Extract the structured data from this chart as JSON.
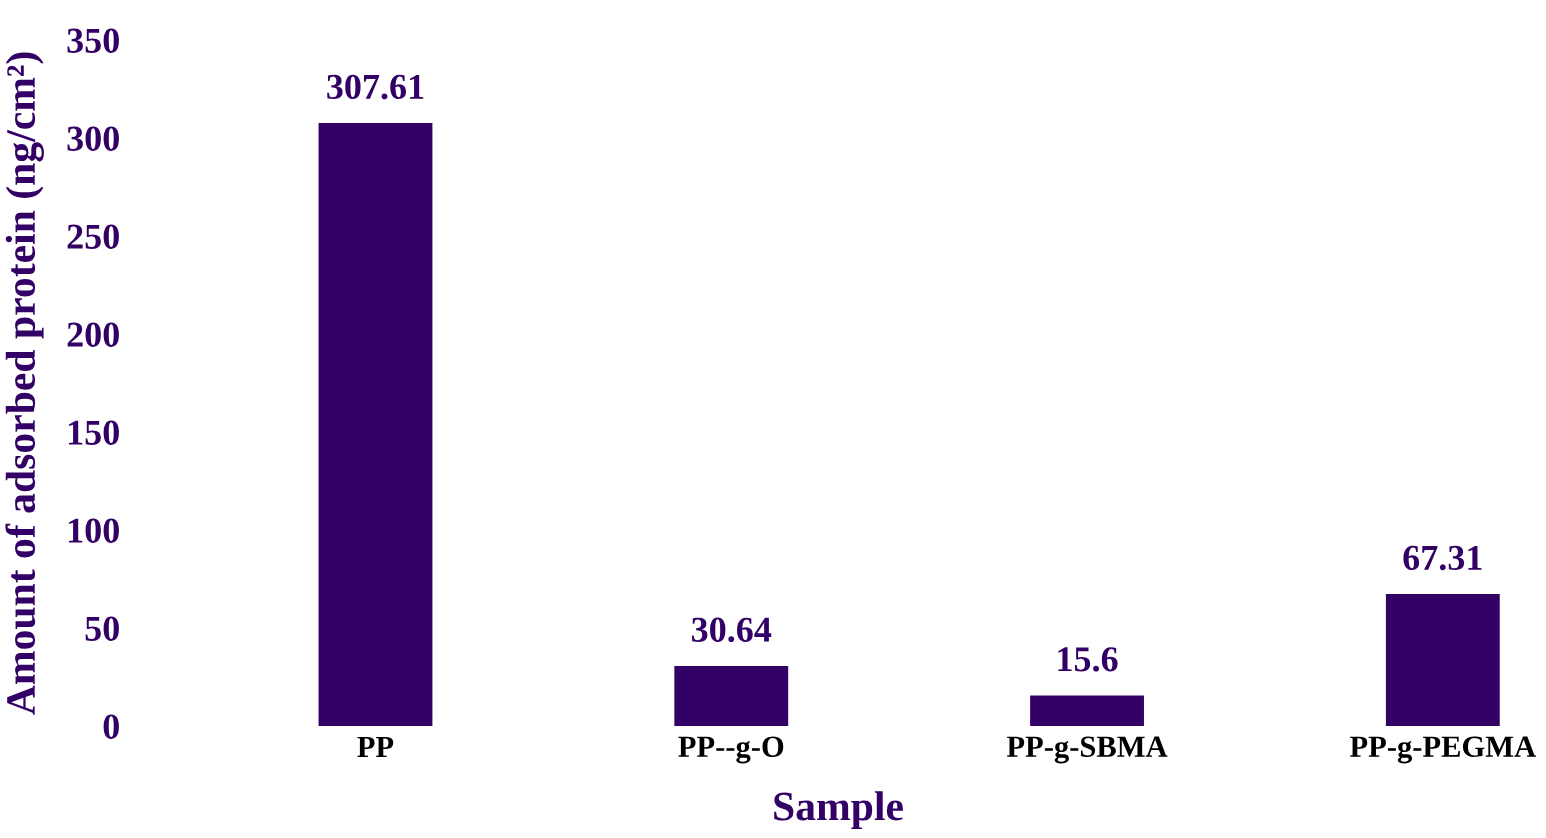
{
  "chart_data": {
    "type": "bar",
    "xlabel": "Sample",
    "ylabel": "Amount of adsorbed protein (ng/cm²)",
    "categories": [
      "PP",
      "PP--g-O",
      "PP-g-SBMA",
      "PP-g-PEGMA"
    ],
    "values": [
      307.61,
      30.64,
      15.6,
      67.31
    ],
    "color": "#330066",
    "ylim": [
      0,
      350
    ],
    "yticks": [
      0,
      50,
      100,
      150,
      200,
      250,
      300,
      350
    ],
    "grid": false,
    "data_labels": true
  }
}
